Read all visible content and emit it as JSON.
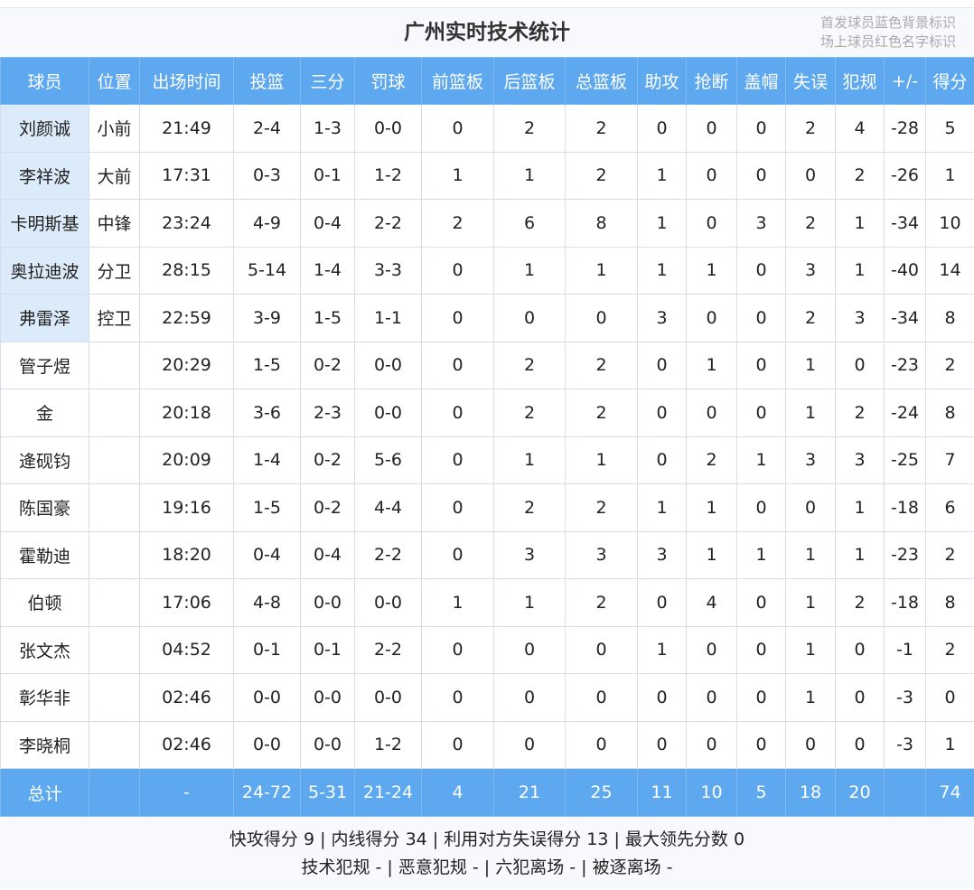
{
  "title": "广州实时技术统计",
  "legend": [
    "首发球员蓝色背景标识",
    "场上球员红色名字标识"
  ],
  "colors": {
    "header": "#5da8ee",
    "starter_bg": "#dcebfa"
  },
  "columns": [
    "球员",
    "位置",
    "出场时间",
    "投篮",
    "三分",
    "罚球",
    "前篮板",
    "后篮板",
    "总篮板",
    "助攻",
    "抢断",
    "盖帽",
    "失误",
    "犯规",
    "+/-",
    "得分"
  ],
  "rows": [
    {
      "starter": true,
      "cells": [
        "刘颜诚",
        "小前",
        "21:49",
        "2-4",
        "1-3",
        "0-0",
        "0",
        "2",
        "2",
        "0",
        "0",
        "0",
        "2",
        "4",
        "-28",
        "5"
      ]
    },
    {
      "starter": true,
      "cells": [
        "李祥波",
        "大前",
        "17:31",
        "0-3",
        "0-1",
        "1-2",
        "1",
        "1",
        "2",
        "1",
        "0",
        "0",
        "0",
        "2",
        "-26",
        "1"
      ]
    },
    {
      "starter": true,
      "cells": [
        "卡明斯基",
        "中锋",
        "23:24",
        "4-9",
        "0-4",
        "2-2",
        "2",
        "6",
        "8",
        "1",
        "0",
        "3",
        "2",
        "1",
        "-34",
        "10"
      ]
    },
    {
      "starter": true,
      "cells": [
        "奥拉迪波",
        "分卫",
        "28:15",
        "5-14",
        "1-4",
        "3-3",
        "0",
        "1",
        "1",
        "1",
        "1",
        "0",
        "3",
        "1",
        "-40",
        "14"
      ]
    },
    {
      "starter": true,
      "cells": [
        "弗雷泽",
        "控卫",
        "22:59",
        "3-9",
        "1-5",
        "1-1",
        "0",
        "0",
        "0",
        "3",
        "0",
        "0",
        "2",
        "3",
        "-34",
        "8"
      ]
    },
    {
      "starter": false,
      "cells": [
        "管子煜",
        "",
        "20:29",
        "1-5",
        "0-2",
        "0-0",
        "0",
        "2",
        "2",
        "0",
        "1",
        "0",
        "1",
        "0",
        "-23",
        "2"
      ]
    },
    {
      "starter": false,
      "cells": [
        "金",
        "",
        "20:18",
        "3-6",
        "2-3",
        "0-0",
        "0",
        "2",
        "2",
        "0",
        "0",
        "0",
        "1",
        "2",
        "-24",
        "8"
      ]
    },
    {
      "starter": false,
      "cells": [
        "逄砚钧",
        "",
        "20:09",
        "1-4",
        "0-2",
        "5-6",
        "0",
        "1",
        "1",
        "0",
        "2",
        "1",
        "3",
        "3",
        "-25",
        "7"
      ]
    },
    {
      "starter": false,
      "cells": [
        "陈国豪",
        "",
        "19:16",
        "1-5",
        "0-2",
        "4-4",
        "0",
        "2",
        "2",
        "1",
        "1",
        "0",
        "0",
        "1",
        "-18",
        "6"
      ]
    },
    {
      "starter": false,
      "cells": [
        "霍勒迪",
        "",
        "18:20",
        "0-4",
        "0-4",
        "2-2",
        "0",
        "3",
        "3",
        "3",
        "1",
        "1",
        "1",
        "1",
        "-23",
        "2"
      ]
    },
    {
      "starter": false,
      "cells": [
        "伯顿",
        "",
        "17:06",
        "4-8",
        "0-0",
        "0-0",
        "1",
        "1",
        "2",
        "0",
        "4",
        "0",
        "1",
        "2",
        "-18",
        "8"
      ]
    },
    {
      "starter": false,
      "cells": [
        "张文杰",
        "",
        "04:52",
        "0-1",
        "0-1",
        "2-2",
        "0",
        "0",
        "0",
        "1",
        "0",
        "0",
        "1",
        "0",
        "-1",
        "2"
      ]
    },
    {
      "starter": false,
      "cells": [
        "彰华非",
        "",
        "02:46",
        "0-0",
        "0-0",
        "0-0",
        "0",
        "0",
        "0",
        "0",
        "0",
        "0",
        "1",
        "0",
        "-3",
        "0"
      ]
    },
    {
      "starter": false,
      "cells": [
        "李晓桐",
        "",
        "02:46",
        "0-0",
        "0-0",
        "1-2",
        "0",
        "0",
        "0",
        "0",
        "0",
        "0",
        "0",
        "0",
        "-3",
        "1"
      ]
    }
  ],
  "totals": [
    "总计",
    "",
    "-",
    "24-72",
    "5-31",
    "21-24",
    "4",
    "21",
    "25",
    "11",
    "10",
    "5",
    "18",
    "20",
    "",
    "74"
  ],
  "footer": [
    "快攻得分 9 | 内线得分 34 | 利用对方失误得分 13 | 最大领先分数 0",
    "技术犯规 - | 恶意犯规 - | 六犯离场 - | 被逐离场 -"
  ]
}
